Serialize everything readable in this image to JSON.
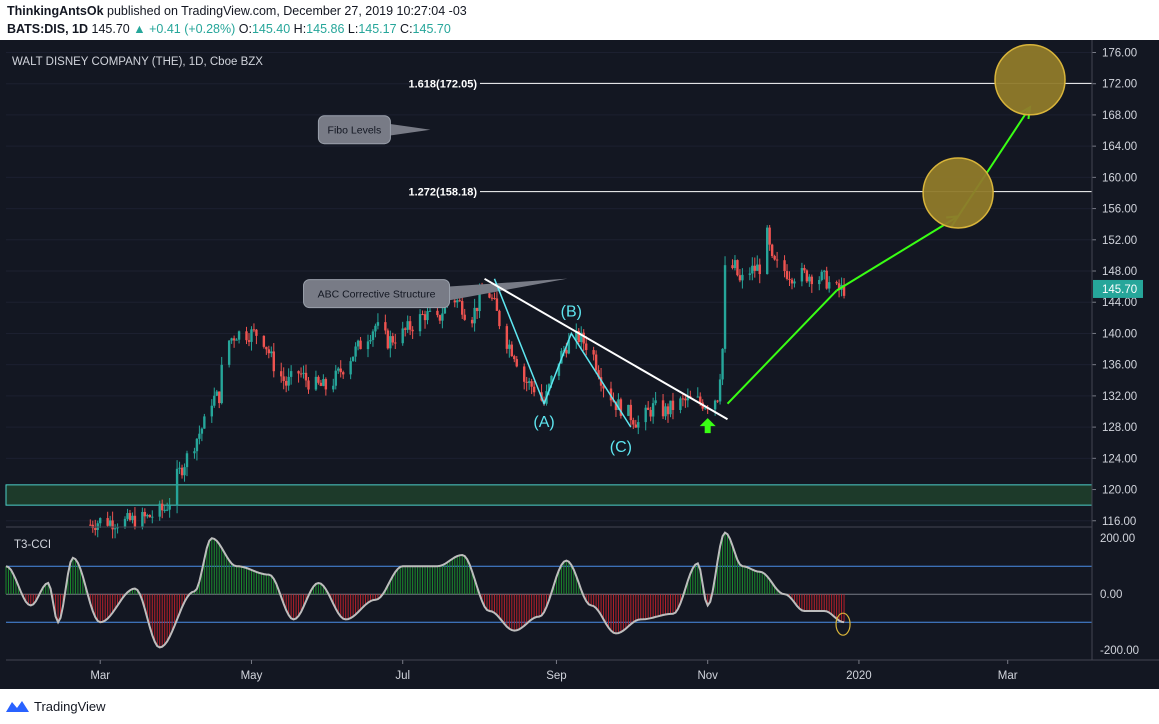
{
  "header": {
    "author": "ThinkingAntsOk",
    "published_text": "published on TradingView.com, December 27, 2019 10:27:04 -03",
    "symbol": "BATS:DIS, 1D",
    "last": "145.70",
    "change": "+0.41 (+0.28%)",
    "o_label": "O:",
    "o_value": "145.40",
    "h_label": "H:",
    "h_value": "145.86",
    "l_label": "L:",
    "l_value": "145.17",
    "c_label": "C:",
    "c_value": "145.70"
  },
  "footer": {
    "brand": "TradingView"
  },
  "colors": {
    "background": "#131722",
    "up": "#26a69a",
    "down": "#ef5350",
    "arrow": "#39ff14",
    "wave": "#5ee6f0",
    "circle": "#8f7a2a",
    "circle_border": "#d8b43a",
    "zone_border": "#4dd0c8",
    "cci_line": "#bdbdbd",
    "cci_hist_up": "#1b8a2c",
    "cci_hist_down": "#b5202a",
    "cci_level": "#4a8ee8"
  },
  "chart_data": {
    "type": "candlestick",
    "title": "WALT DISNEY COMPANY (THE), 1D, Cboe BZX",
    "price_axis": {
      "ticks": [
        "176.00",
        "172.00",
        "168.00",
        "164.00",
        "160.00",
        "156.00",
        "152.00",
        "148.00",
        "144.00",
        "140.00",
        "136.00",
        "132.00",
        "128.00",
        "124.00",
        "120.00",
        "116.00"
      ],
      "range": [
        115.2,
        177.6
      ],
      "last_price_label": "145.70"
    },
    "time_axis": {
      "ticks": [
        {
          "label": "Mar",
          "date": "2019-03-01"
        },
        {
          "label": "May",
          "date": "2019-05-01"
        },
        {
          "label": "Jul",
          "date": "2019-07-01"
        },
        {
          "label": "Sep",
          "date": "2019-09-01"
        },
        {
          "label": "Nov",
          "date": "2019-11-01"
        },
        {
          "label": "2020",
          "date": "2020-01-01"
        },
        {
          "label": "Mar",
          "date": "2020-03-01"
        }
      ],
      "range": [
        "2019-01-22",
        "2020-04-04"
      ]
    },
    "price_path": [
      [
        "2019-02-25",
        115.5
      ],
      [
        "2019-03-01",
        116.0
      ],
      [
        "2019-03-10",
        115.8
      ],
      [
        "2019-03-20",
        116.4
      ],
      [
        "2019-03-27",
        117.5
      ],
      [
        "2019-03-29",
        118.5
      ],
      [
        "2019-03-31",
        121.0
      ],
      [
        "2019-04-12",
        128.5
      ],
      [
        "2019-04-15",
        131.5
      ],
      [
        "2019-04-18",
        132.0
      ],
      [
        "2019-04-20",
        138.5
      ],
      [
        "2019-04-25",
        140.0
      ],
      [
        "2019-05-05",
        140.0
      ],
      [
        "2019-05-10",
        136.0
      ],
      [
        "2019-05-15",
        133.5
      ],
      [
        "2019-05-20",
        135.0
      ],
      [
        "2019-05-25",
        133.5
      ],
      [
        "2019-06-01",
        133.0
      ],
      [
        "2019-06-10",
        137.0
      ],
      [
        "2019-06-20",
        141.0
      ],
      [
        "2019-06-25",
        139.0
      ],
      [
        "2019-07-01",
        140.0
      ],
      [
        "2019-07-10",
        142.5
      ],
      [
        "2019-07-15",
        141.5
      ],
      [
        "2019-07-20",
        145.0
      ],
      [
        "2019-07-25",
        143.5
      ],
      [
        "2019-07-28",
        141.5
      ],
      [
        "2019-08-02",
        145.0
      ],
      [
        "2019-08-03",
        146.5
      ],
      [
        "2019-08-07",
        143.5
      ],
      [
        "2019-08-11",
        139.5
      ],
      [
        "2019-08-15",
        137.5
      ],
      [
        "2019-08-19",
        134.0
      ],
      [
        "2019-08-23",
        133.0
      ],
      [
        "2019-08-27",
        131.0
      ],
      [
        "2019-09-01",
        136.0
      ],
      [
        "2019-09-05",
        138.5
      ],
      [
        "2019-09-10",
        139.5
      ],
      [
        "2019-09-15",
        138.0
      ],
      [
        "2019-09-20",
        133.5
      ],
      [
        "2019-09-25",
        131.0
      ],
      [
        "2019-10-01",
        129.5
      ],
      [
        "2019-10-04",
        128.5
      ],
      [
        "2019-10-10",
        130.5
      ],
      [
        "2019-10-15",
        130.0
      ],
      [
        "2019-10-20",
        131.0
      ],
      [
        "2019-10-25",
        131.5
      ],
      [
        "2019-11-01",
        131.0
      ],
      [
        "2019-11-05",
        132.0
      ],
      [
        "2019-11-07",
        138.0
      ],
      [
        "2019-11-08",
        148.0
      ],
      [
        "2019-11-12",
        148.5
      ],
      [
        "2019-11-14",
        146.5
      ],
      [
        "2019-11-18",
        148.0
      ],
      [
        "2019-11-22",
        148.5
      ],
      [
        "2019-11-25",
        152.5
      ],
      [
        "2019-11-27",
        149.0
      ],
      [
        "2019-12-05",
        147.5
      ],
      [
        "2019-12-12",
        147.5
      ],
      [
        "2019-12-18",
        147.0
      ],
      [
        "2019-12-23",
        145.5
      ],
      [
        "2019-12-26",
        145.7
      ]
    ],
    "fib_levels": [
      {
        "label": "1.618(172.05)",
        "price": 172.05
      },
      {
        "label": "1.272(158.18)",
        "price": 158.18
      }
    ],
    "zone": {
      "high": 120.6,
      "low": 118.0
    },
    "annotations": [
      {
        "text": "Fibo Levels",
        "date": "2019-05-28",
        "price": 167.9
      },
      {
        "text": "ABC Corrective Structure",
        "date": "2019-05-22",
        "price": 146.9
      }
    ],
    "wave_labels": [
      {
        "text": "(A)",
        "date": "2019-08-27",
        "price": 128.0
      },
      {
        "text": "(B)",
        "date": "2019-09-07",
        "price": 142.2
      },
      {
        "text": "(C)",
        "date": "2019-09-27",
        "price": 124.8
      }
    ],
    "wave_path": [
      [
        "2019-08-07",
        147.0
      ],
      [
        "2019-08-27",
        131.0
      ],
      [
        "2019-09-07",
        140.0
      ],
      [
        "2019-10-01",
        128.0
      ]
    ],
    "trendline": [
      [
        "2019-08-03",
        147.0
      ],
      [
        "2019-11-09",
        129.0
      ]
    ],
    "projection_arrow": [
      [
        "2019-11-09",
        131.0
      ],
      [
        "2019-12-23",
        145.5
      ],
      [
        "2020-02-10",
        155.0
      ],
      [
        "2020-03-10",
        169.0
      ]
    ],
    "target_circles": [
      {
        "date": "2020-02-10",
        "price": 158.0
      },
      {
        "date": "2020-03-10",
        "price": 172.5
      }
    ],
    "up_arrow": {
      "date": "2019-11-01",
      "price": 128.0
    },
    "indicator": {
      "name": "T3-CCI",
      "ticks": [
        "200.00",
        "0.00",
        "-200.00"
      ],
      "range": [
        -235,
        240
      ],
      "levels": [
        100,
        0,
        -100
      ],
      "x": [
        "2019-01-22",
        "2019-02-01",
        "2019-02-08",
        "2019-02-12",
        "2019-02-18",
        "2019-03-01",
        "2019-03-15",
        "2019-03-25",
        "2019-04-08",
        "2019-04-15",
        "2019-04-25",
        "2019-05-08",
        "2019-05-18",
        "2019-05-28",
        "2019-06-08",
        "2019-06-20",
        "2019-07-01",
        "2019-07-15",
        "2019-07-25",
        "2019-08-05",
        "2019-08-15",
        "2019-08-25",
        "2019-09-05",
        "2019-09-15",
        "2019-09-25",
        "2019-10-05",
        "2019-10-18",
        "2019-10-28",
        "2019-11-01",
        "2019-11-08",
        "2019-11-15",
        "2019-11-22",
        "2019-12-02",
        "2019-12-10",
        "2019-12-18",
        "2019-12-26"
      ],
      "values": [
        100,
        -40,
        40,
        -100,
        130,
        -100,
        20,
        -190,
        10,
        200,
        100,
        70,
        -90,
        40,
        -90,
        -20,
        100,
        100,
        140,
        -60,
        -130,
        -80,
        120,
        -40,
        -140,
        -90,
        -70,
        110,
        -40,
        220,
        100,
        80,
        0,
        -60,
        -60,
        -100
      ]
    }
  }
}
